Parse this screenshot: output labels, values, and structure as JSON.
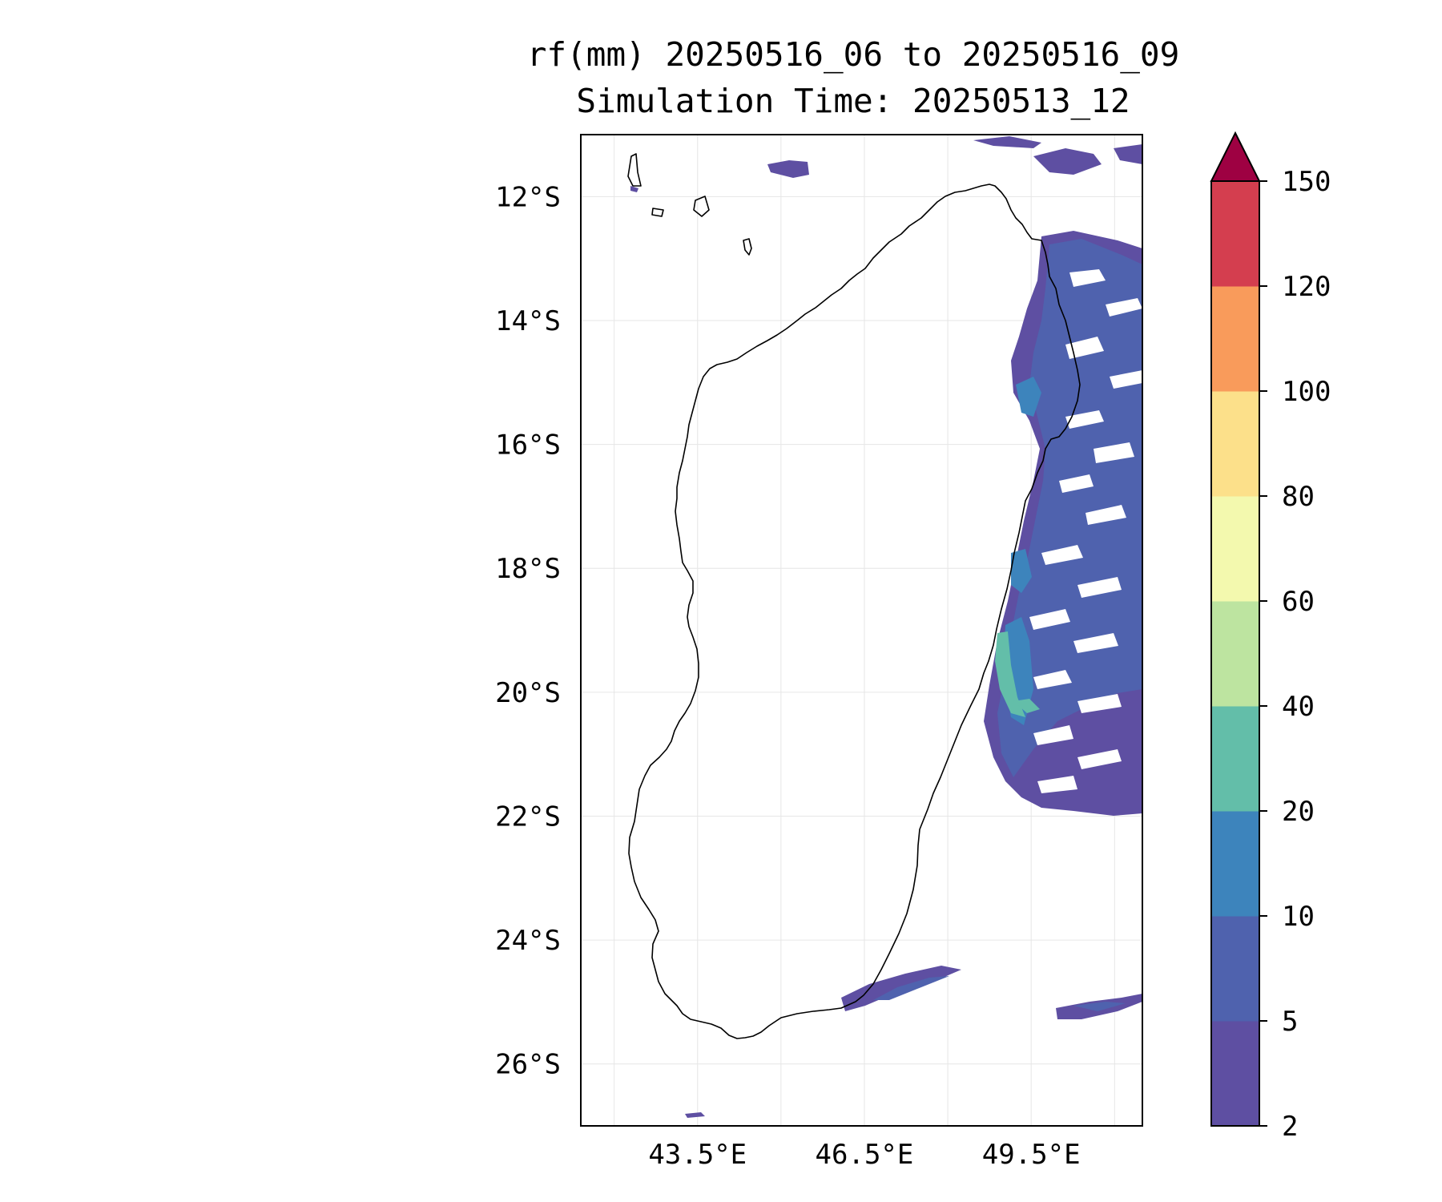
{
  "title": {
    "line1": "rf(mm) 20250516_06 to 20250516_09",
    "line2": "Simulation Time: 20250513_12"
  },
  "map": {
    "lon_range": [
      41.4,
      51.5
    ],
    "lat_range": [
      -27.0,
      -11.0
    ],
    "lat_ticks": [
      {
        "value": -12,
        "label": "12°S"
      },
      {
        "value": -14,
        "label": "14°S"
      },
      {
        "value": -16,
        "label": "16°S"
      },
      {
        "value": -18,
        "label": "18°S"
      },
      {
        "value": -20,
        "label": "20°S"
      },
      {
        "value": -22,
        "label": "22°S"
      },
      {
        "value": -24,
        "label": "24°S"
      },
      {
        "value": -26,
        "label": "26°S"
      }
    ],
    "lon_ticks": [
      {
        "value": 43.5,
        "label": "43.5°E"
      },
      {
        "value": 46.5,
        "label": "46.5°E"
      },
      {
        "value": 49.5,
        "label": "49.5°E"
      }
    ],
    "gridlines": true
  },
  "colorbar": {
    "levels": [
      {
        "value": 2,
        "label": "2"
      },
      {
        "value": 5,
        "label": "5"
      },
      {
        "value": 10,
        "label": "10"
      },
      {
        "value": 20,
        "label": "20"
      },
      {
        "value": 40,
        "label": "40"
      },
      {
        "value": 60,
        "label": "60"
      },
      {
        "value": 80,
        "label": "80"
      },
      {
        "value": 100,
        "label": "100"
      },
      {
        "value": 120,
        "label": "120"
      },
      {
        "value": 150,
        "label": "150"
      }
    ],
    "colors": [
      "#5e4fa2",
      "#4f62ae",
      "#3d84bc",
      "#63bea9",
      "#bde4a0",
      "#f3f9ae",
      "#fce08a",
      "#f99b5b",
      "#d43e4f"
    ],
    "extend_color": "#9e0142",
    "extend": "max"
  },
  "chart_data": {
    "type": "heatmap",
    "variable": "rf(mm)",
    "period": "20250516_06 to 20250516_09",
    "simulation_time": "20250513_12",
    "units": "mm",
    "rain_regions": [
      {
        "region": "east coast offshore 12.5°S-22°S, 48.8°E-51.5°E",
        "range_mm": [
          2,
          10
        ]
      },
      {
        "region": "southeast coast near 19°S-20.5°S, ~48.9°E",
        "range_mm": [
          10,
          40
        ]
      },
      {
        "region": "south of island near 25°S, 47°E-48.5°E",
        "range_mm": [
          2,
          10
        ]
      },
      {
        "region": "offshore southeast near 25.3°S, 50°E-51.5°E",
        "range_mm": [
          2,
          10
        ]
      },
      {
        "region": "northwest small cells near 11.5°S, 45.5°E",
        "range_mm": [
          2,
          10
        ]
      },
      {
        "region": "northern edge near 11°S, 48.5°E-51°E",
        "range_mm": [
          2,
          10
        ]
      }
    ]
  }
}
